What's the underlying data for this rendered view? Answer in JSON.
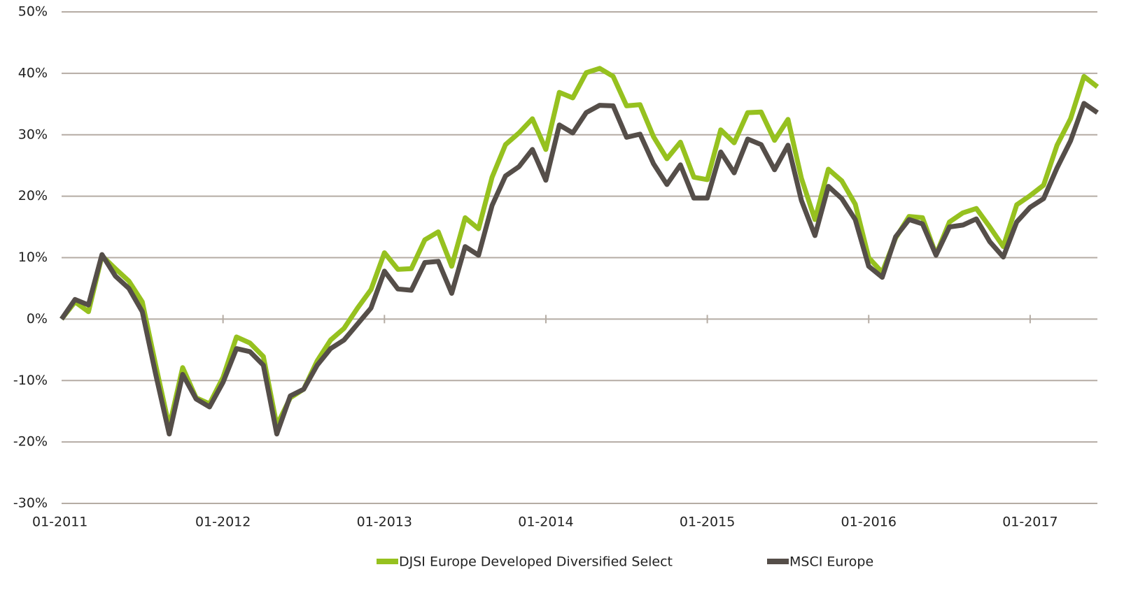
{
  "chart_data": {
    "type": "line",
    "categories": [
      "01-2011",
      null,
      null,
      null,
      null,
      null,
      null,
      null,
      null,
      null,
      null,
      null,
      "01-2012",
      null,
      null,
      null,
      null,
      null,
      null,
      null,
      null,
      null,
      null,
      null,
      "01-2013",
      null,
      null,
      null,
      null,
      null,
      null,
      null,
      null,
      null,
      null,
      null,
      "01-2014",
      null,
      null,
      null,
      null,
      null,
      null,
      null,
      null,
      null,
      null,
      null,
      "01-2015",
      null,
      null,
      null,
      null,
      null,
      null,
      null,
      null,
      null,
      null,
      null,
      "01-2016",
      null,
      null,
      null,
      null,
      null,
      null,
      null,
      null,
      null,
      null,
      null,
      "01-2017",
      null,
      null,
      null,
      null,
      null
    ],
    "series": [
      {
        "name": "DJSI Europe Developed Diversified Select",
        "color": "#96c11f",
        "values": [
          0,
          2.8,
          1.2,
          10.3,
          8.2,
          6.2,
          2.8,
          -7.5,
          -17.5,
          -7.9,
          -12.8,
          -13.8,
          -9.5,
          -2.9,
          -3.9,
          -6.1,
          -17.3,
          -12.8,
          -11.4,
          -6.8,
          -3.4,
          -1.5,
          1.8,
          4.8,
          10.8,
          8.1,
          8.2,
          12.9,
          14.2,
          8.6,
          16.5,
          14.7,
          23.1,
          28.4,
          30.3,
          32.6,
          27.6,
          36.9,
          36.0,
          40.1,
          40.8,
          39.5,
          34.7,
          34.9,
          29.7,
          26.1,
          28.8,
          23.1,
          22.7,
          30.8,
          28.7,
          33.6,
          33.7,
          29.1,
          32.5,
          22.9,
          16.2,
          24.4,
          22.5,
          18.7,
          10.0,
          7.6,
          13.2,
          16.7,
          16.5,
          10.5,
          15.8,
          17.3,
          18.0,
          15.0,
          11.8,
          18.6,
          20.1,
          21.8,
          28.3,
          32.6,
          39.5,
          37.8
        ]
      },
      {
        "name": "MSCI Europe",
        "color": "#554e49",
        "values": [
          0,
          3.2,
          2.3,
          10.5,
          7.0,
          5.0,
          1.2,
          -9,
          -18.7,
          -9,
          -13,
          -14.3,
          -10.3,
          -4.8,
          -5.3,
          -7.5,
          -18.7,
          -12.5,
          -11.4,
          -7.5,
          -4.8,
          -3.4,
          -0.8,
          1.8,
          7.8,
          4.9,
          4.7,
          9.2,
          9.4,
          4.2,
          11.8,
          10.4,
          18.5,
          23.3,
          24.8,
          27.6,
          22.6,
          31.6,
          30.3,
          33.6,
          34.8,
          34.7,
          29.6,
          30.1,
          25.3,
          21.9,
          25.1,
          19.7,
          19.7,
          27.2,
          23.8,
          29.3,
          28.4,
          24.3,
          28.3,
          19.3,
          13.6,
          21.6,
          19.6,
          16.2,
          8.6,
          6.8,
          13.4,
          16.2,
          15.5,
          10.4,
          15.0,
          15.3,
          16.3,
          12.6,
          10.1,
          15.8,
          18.2,
          19.6,
          24.6,
          29.0,
          35.1,
          33.6
        ]
      }
    ],
    "ylim": [
      -30,
      50
    ],
    "yticks": [
      {
        "value": -30,
        "label": "-30%"
      },
      {
        "value": -20,
        "label": "-20%"
      },
      {
        "value": -10,
        "label": "-10%"
      },
      {
        "value": 0,
        "label": "0%"
      },
      {
        "value": 10,
        "label": "10%"
      },
      {
        "value": 20,
        "label": "20%"
      },
      {
        "value": 30,
        "label": "30%"
      },
      {
        "value": 40,
        "label": "40%"
      },
      {
        "value": 50,
        "label": "50%"
      }
    ],
    "grid": true,
    "legend": "bottom"
  }
}
